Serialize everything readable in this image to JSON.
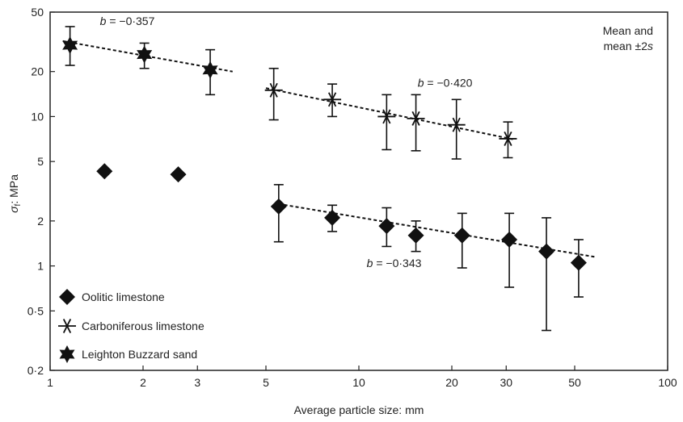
{
  "chart_data": {
    "type": "scatter",
    "xscale": "log",
    "yscale": "log",
    "xlim": [
      1,
      100
    ],
    "ylim": [
      0.2,
      50
    ],
    "xlabel": "Average particle size: mm",
    "ylabel_main": "σ",
    "ylabel_sub": "f",
    "ylabel_rest": ": MPa",
    "x_ticks": [
      {
        "v": 1,
        "label": "1"
      },
      {
        "v": 2,
        "label": "2"
      },
      {
        "v": 3,
        "label": "3"
      },
      {
        "v": 5,
        "label": "5"
      },
      {
        "v": 10,
        "label": "10"
      },
      {
        "v": 20,
        "label": "20"
      },
      {
        "v": 30,
        "label": "30"
      },
      {
        "v": 50,
        "label": "50"
      },
      {
        "v": 100,
        "label": "100"
      }
    ],
    "y_ticks": [
      {
        "v": 0.2,
        "label": "0·2"
      },
      {
        "v": 0.5,
        "label": "0·5"
      },
      {
        "v": 1,
        "label": "1"
      },
      {
        "v": 2,
        "label": "2"
      },
      {
        "v": 5,
        "label": "5"
      },
      {
        "v": 10,
        "label": "10"
      },
      {
        "v": 20,
        "label": "20"
      },
      {
        "v": 50,
        "label": "50"
      }
    ],
    "note_line1": "Mean and",
    "note_line2_prefix": "mean ±2",
    "note_line2_italic": "s",
    "series": [
      {
        "name": "Leighton Buzzard sand",
        "marker": "star",
        "points": [
          {
            "x": 1.16,
            "y": 30,
            "lo": 22,
            "hi": 40
          },
          {
            "x": 2.02,
            "y": 26,
            "lo": 21,
            "hi": 31
          },
          {
            "x": 3.3,
            "y": 20.5,
            "lo": 14,
            "hi": 28
          }
        ],
        "fit": {
          "x": [
            1.1,
            3.9
          ],
          "y": [
            32,
            20
          ]
        },
        "slope_label": "b = −0·357",
        "slope_label_pos": {
          "x": 1.45,
          "y": 41
        }
      },
      {
        "name": "Carboniferous limestone",
        "marker": "asterisk",
        "points": [
          {
            "x": 5.3,
            "y": 15,
            "lo": 9.5,
            "hi": 21
          },
          {
            "x": 8.2,
            "y": 13,
            "lo": 10,
            "hi": 16.5
          },
          {
            "x": 12.3,
            "y": 10,
            "lo": 6,
            "hi": 14
          },
          {
            "x": 15.3,
            "y": 9.7,
            "lo": 5.9,
            "hi": 14
          },
          {
            "x": 20.7,
            "y": 8.8,
            "lo": 5.2,
            "hi": 13
          },
          {
            "x": 30.4,
            "y": 7.1,
            "lo": 5.3,
            "hi": 9.2
          }
        ],
        "fit": {
          "x": [
            5.0,
            32
          ],
          "y": [
            15.5,
            7.0
          ]
        },
        "slope_label": "b = −0·420",
        "slope_label_pos": {
          "x": 15.5,
          "y": 15.8
        }
      },
      {
        "name": "Oolitic limestone",
        "marker": "diamond",
        "points": [
          {
            "x": 1.5,
            "y": 4.3
          },
          {
            "x": 2.6,
            "y": 4.1
          },
          {
            "x": 5.5,
            "y": 2.5,
            "lo": 1.45,
            "hi": 3.5
          },
          {
            "x": 8.2,
            "y": 2.1,
            "lo": 1.7,
            "hi": 2.55
          },
          {
            "x": 12.3,
            "y": 1.85,
            "lo": 1.35,
            "hi": 2.45
          },
          {
            "x": 15.3,
            "y": 1.6,
            "lo": 1.25,
            "hi": 2.0
          },
          {
            "x": 21.6,
            "y": 1.6,
            "lo": 0.97,
            "hi": 2.25
          },
          {
            "x": 30.7,
            "y": 1.5,
            "lo": 0.72,
            "hi": 2.25
          },
          {
            "x": 40.5,
            "y": 1.25,
            "lo": 0.37,
            "hi": 2.1
          },
          {
            "x": 51.5,
            "y": 1.05,
            "lo": 0.62,
            "hi": 1.5
          }
        ],
        "fit": {
          "x": [
            5.5,
            58
          ],
          "y": [
            2.6,
            1.15
          ]
        },
        "slope_label": "b = −0·343",
        "slope_label_pos": {
          "x": 10.6,
          "y": 0.98
        }
      }
    ],
    "legend_order": [
      "Oolitic limestone",
      "Carboniferous limestone",
      "Leighton Buzzard sand"
    ]
  }
}
